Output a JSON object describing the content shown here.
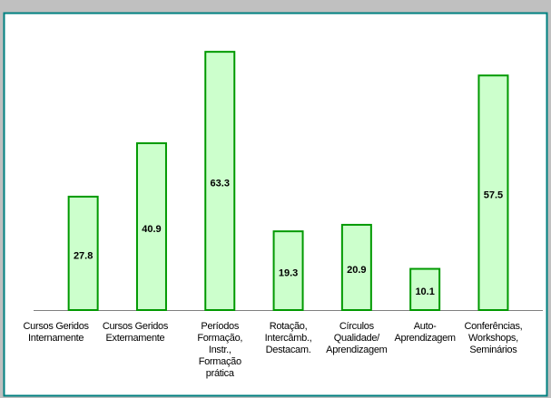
{
  "chart_data": {
    "type": "bar",
    "categories": [
      "Cursos Geridos\nInternamente",
      "Cursos Geridos\nExternamente",
      "Períodos\nFormação,\nInstr.,\nFormação\nprática",
      "Rotação,\nIntercâmb.,\nDestacam.",
      "Círculos\nQualidade/\nAprendizagem",
      "Auto-\nAprendizagem",
      "Conferências,\nWorkshops,\nSeminários"
    ],
    "values": [
      27.8,
      40.9,
      63.3,
      19.3,
      20.9,
      10.1,
      57.5
    ],
    "color": "#ccffcc",
    "edge_color": "#009900",
    "ylim": [
      0,
      70
    ]
  }
}
